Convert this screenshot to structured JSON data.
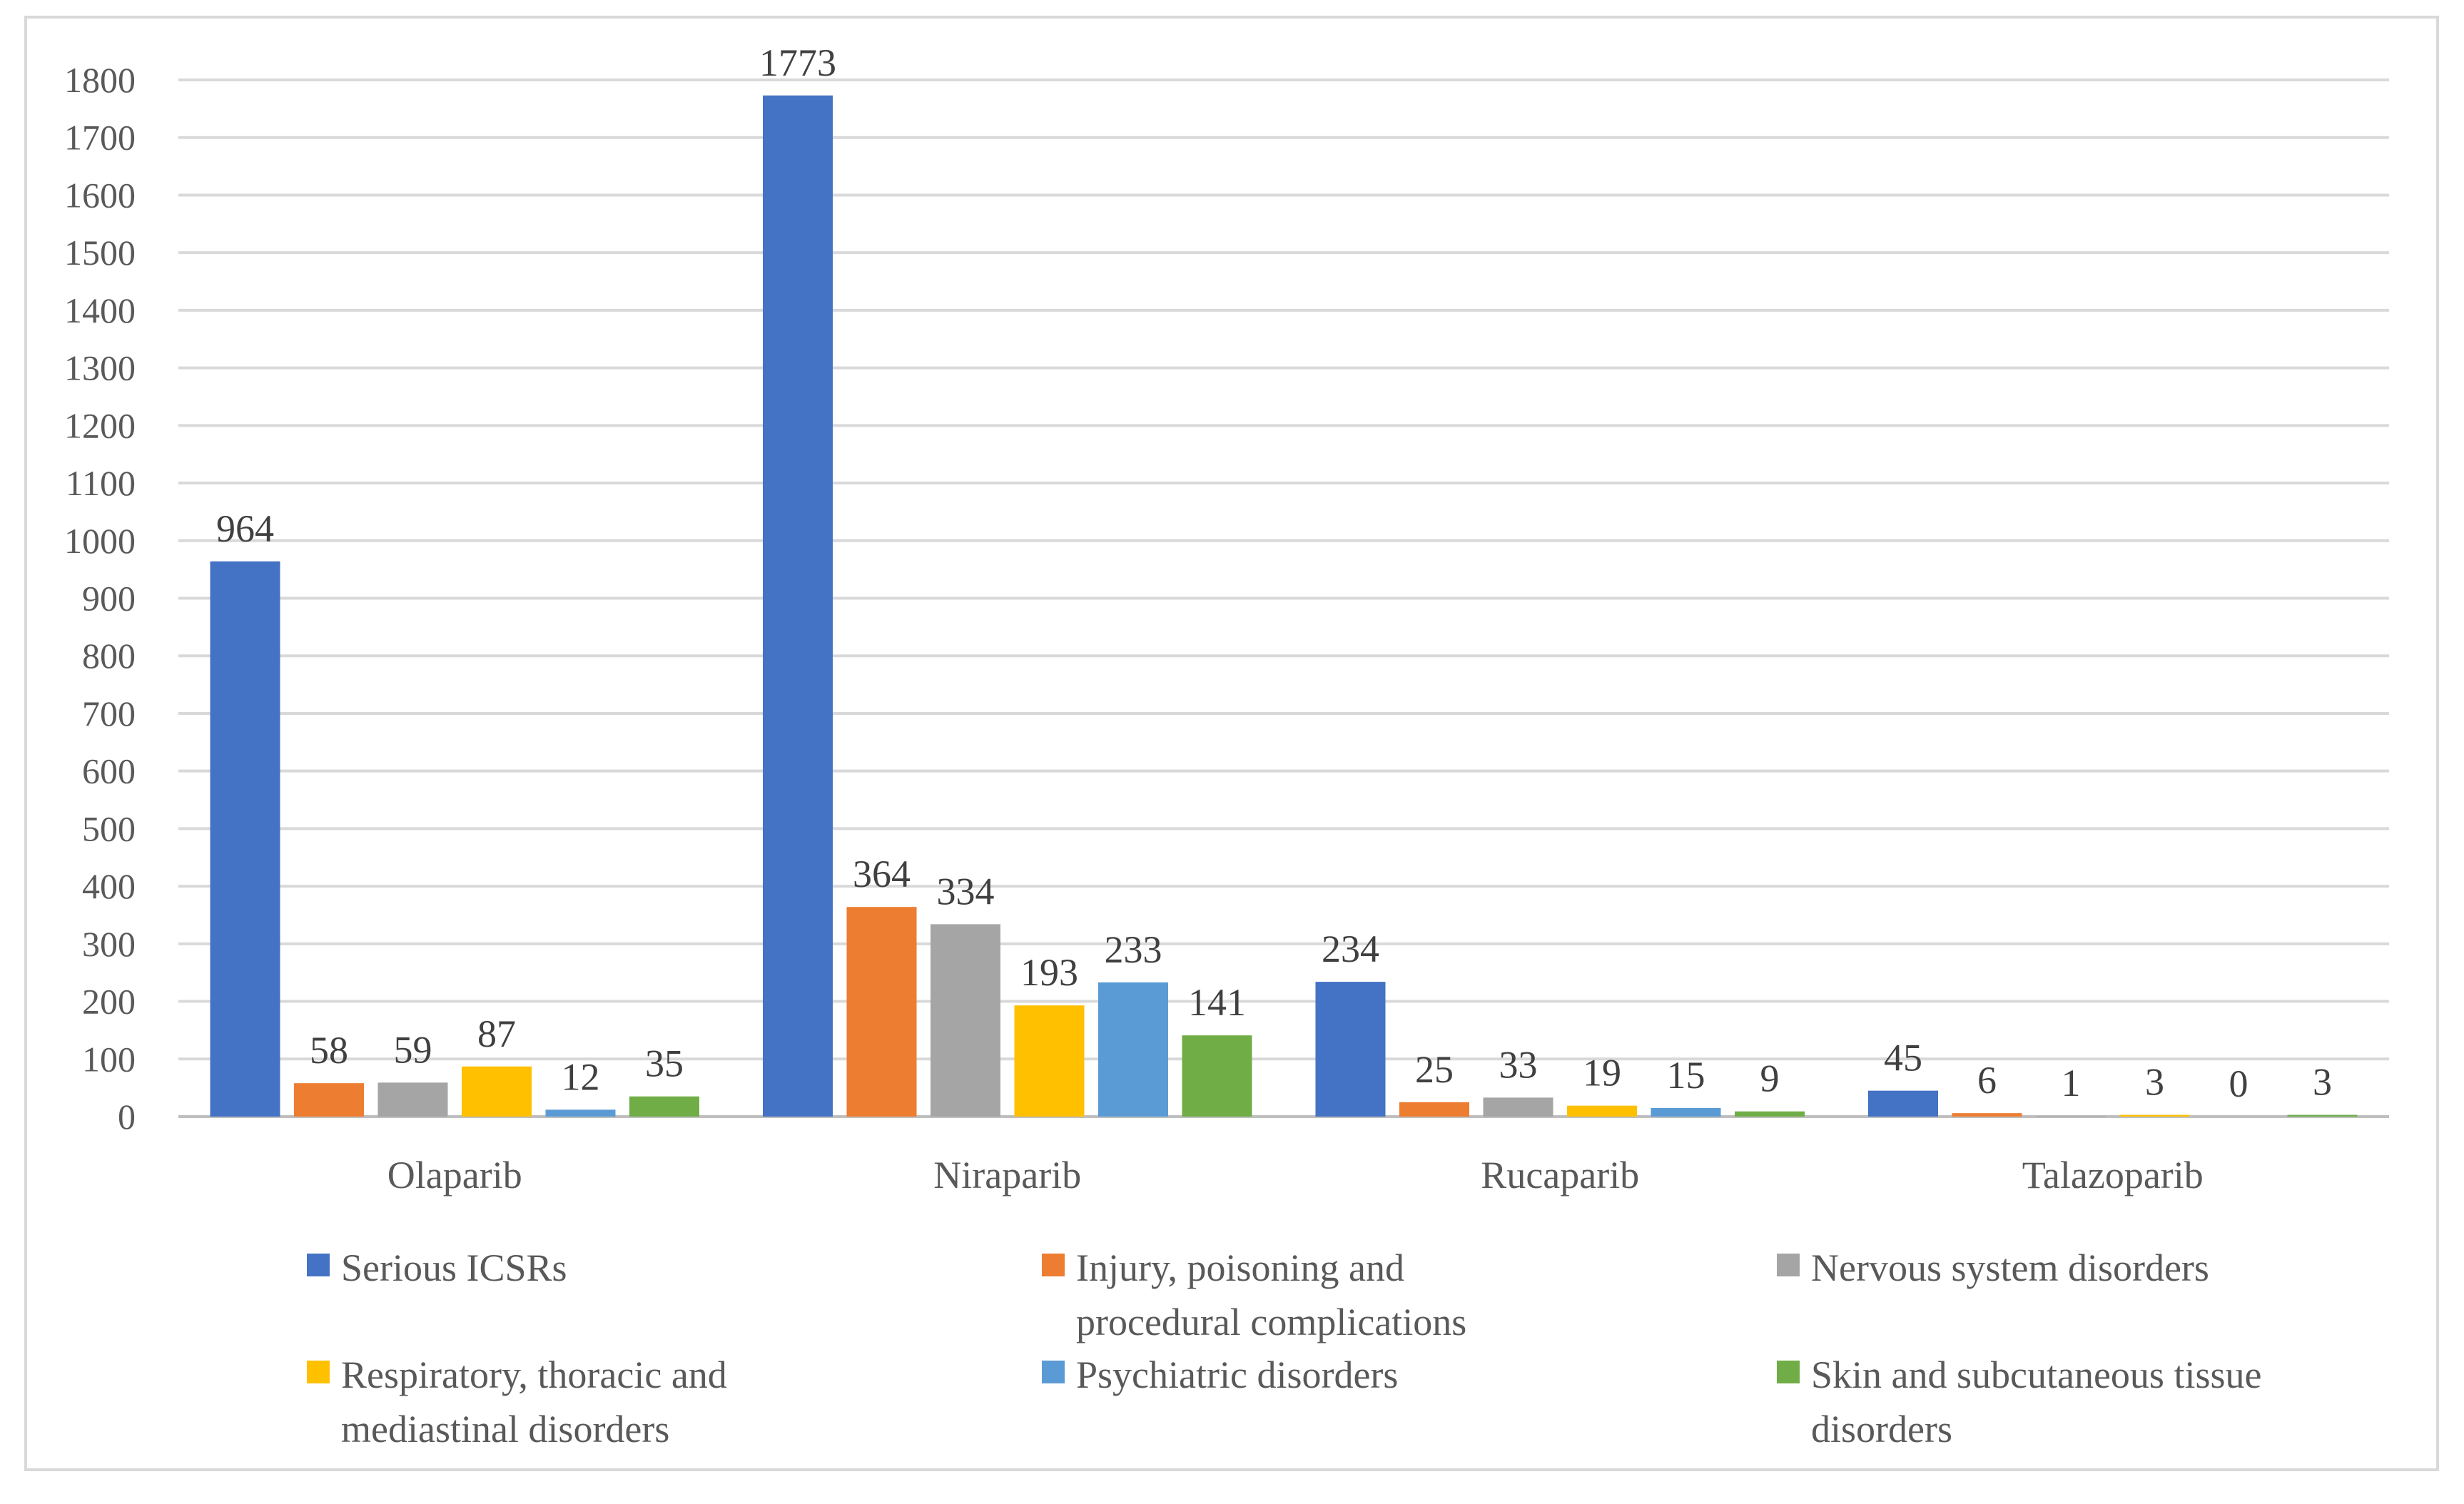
{
  "chart_data": {
    "type": "bar",
    "title": "",
    "xlabel": "",
    "ylabel": "",
    "ylim": [
      0,
      1800
    ],
    "yticks": [
      0,
      100,
      200,
      300,
      400,
      500,
      600,
      700,
      800,
      900,
      1000,
      1100,
      1200,
      1300,
      1400,
      1500,
      1600,
      1700,
      1800
    ],
    "grid": true,
    "legend_position": "bottom",
    "categories": [
      "Olaparib",
      "Niraparib",
      "Rucaparib",
      "Talazoparib"
    ],
    "series": [
      {
        "name": "Serious ICSRs",
        "color": "#4472c4",
        "values": [
          964,
          1773,
          234,
          45
        ]
      },
      {
        "name": "Injury, poisoning and procedural complications",
        "color": "#ed7d31",
        "values": [
          58,
          364,
          25,
          6
        ]
      },
      {
        "name": "Nervous system disorders",
        "color": "#a5a5a5",
        "values": [
          59,
          334,
          33,
          1
        ]
      },
      {
        "name": "Respiratory, thoracic and mediastinal disorders",
        "color": "#ffc000",
        "values": [
          87,
          193,
          19,
          3
        ]
      },
      {
        "name": "Psychiatric disorders",
        "color": "#5b9bd5",
        "values": [
          12,
          233,
          15,
          0
        ]
      },
      {
        "name": "Skin and subcutaneous tissue disorders",
        "color": "#70ad47",
        "values": [
          35,
          141,
          9,
          3
        ]
      }
    ]
  }
}
